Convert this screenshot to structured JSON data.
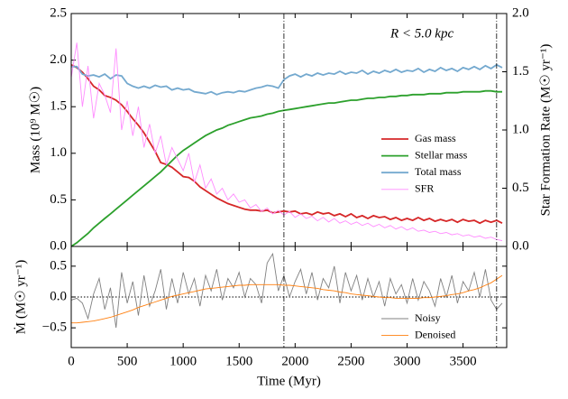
{
  "chart_data": [
    {
      "type": "line",
      "ylabel": "Mass (10⁹ M☉)",
      "y2label": "Star Formation Rate (M☉ yr⁻¹)",
      "annotation": "R < 5.0 kpc",
      "xlim": [
        0,
        3890
      ],
      "xticks": [
        0,
        500,
        1000,
        1500,
        2000,
        2500,
        3000,
        3500
      ],
      "ylim": [
        0,
        2.5
      ],
      "yticks": [
        {
          "value": 0,
          "label": "0.0"
        },
        0.5,
        {
          "value": 1,
          "label": "1.0"
        },
        1.5,
        {
          "value": 2,
          "label": "2.0"
        },
        2.5
      ],
      "y2lim": [
        0,
        2.0
      ],
      "y2ticks": [
        {
          "value": 0,
          "label": "0.0"
        },
        0.5,
        {
          "value": 1,
          "label": "1.0"
        },
        1.5,
        {
          "value": 2,
          "label": "2.0"
        }
      ],
      "vlines": [
        1900,
        3800
      ],
      "legend": "lower right",
      "x": [
        0,
        50,
        100,
        150,
        200,
        250,
        300,
        350,
        400,
        450,
        500,
        550,
        600,
        650,
        700,
        750,
        800,
        850,
        900,
        950,
        1000,
        1050,
        1100,
        1150,
        1200,
        1250,
        1300,
        1350,
        1400,
        1450,
        1500,
        1550,
        1600,
        1650,
        1700,
        1750,
        1800,
        1850,
        1900,
        1950,
        2000,
        2050,
        2100,
        2150,
        2200,
        2250,
        2300,
        2350,
        2400,
        2450,
        2500,
        2550,
        2600,
        2650,
        2700,
        2750,
        2800,
        2850,
        2900,
        2950,
        3000,
        3050,
        3100,
        3150,
        3200,
        3250,
        3300,
        3350,
        3400,
        3450,
        3500,
        3550,
        3600,
        3650,
        3700,
        3750,
        3800,
        3850
      ],
      "series": [
        {
          "name": "Gas mass",
          "color": "#d62728",
          "values": [
            1.95,
            1.92,
            1.87,
            1.8,
            1.72,
            1.68,
            1.62,
            1.6,
            1.57,
            1.52,
            1.45,
            1.37,
            1.3,
            1.22,
            1.12,
            1.02,
            0.9,
            0.88,
            0.85,
            0.8,
            0.75,
            0.74,
            0.7,
            0.64,
            0.6,
            0.56,
            0.52,
            0.49,
            0.46,
            0.44,
            0.42,
            0.4,
            0.39,
            0.39,
            0.38,
            0.39,
            0.36,
            0.37,
            0.38,
            0.37,
            0.38,
            0.35,
            0.36,
            0.34,
            0.37,
            0.35,
            0.36,
            0.33,
            0.35,
            0.32,
            0.35,
            0.31,
            0.33,
            0.3,
            0.33,
            0.31,
            0.32,
            0.29,
            0.31,
            0.28,
            0.3,
            0.28,
            0.31,
            0.28,
            0.3,
            0.27,
            0.29,
            0.27,
            0.29,
            0.26,
            0.29,
            0.27,
            0.28,
            0.25,
            0.28,
            0.26,
            0.28,
            0.25
          ]
        },
        {
          "name": "Stellar mass",
          "color": "#2ca02c",
          "values": [
            0.0,
            0.04,
            0.09,
            0.14,
            0.2,
            0.25,
            0.3,
            0.35,
            0.4,
            0.45,
            0.5,
            0.55,
            0.6,
            0.65,
            0.7,
            0.75,
            0.8,
            0.86,
            0.92,
            0.98,
            1.03,
            1.07,
            1.11,
            1.15,
            1.19,
            1.22,
            1.25,
            1.27,
            1.3,
            1.32,
            1.34,
            1.36,
            1.38,
            1.39,
            1.4,
            1.42,
            1.43,
            1.45,
            1.46,
            1.47,
            1.48,
            1.49,
            1.5,
            1.51,
            1.52,
            1.53,
            1.54,
            1.54,
            1.55,
            1.56,
            1.57,
            1.57,
            1.58,
            1.59,
            1.59,
            1.6,
            1.6,
            1.61,
            1.61,
            1.62,
            1.62,
            1.63,
            1.63,
            1.63,
            1.64,
            1.64,
            1.64,
            1.65,
            1.65,
            1.65,
            1.66,
            1.66,
            1.66,
            1.66,
            1.67,
            1.67,
            1.66,
            1.66
          ]
        },
        {
          "name": "Total mass",
          "color": "#74a9cf",
          "values": [
            1.93,
            1.93,
            1.85,
            1.83,
            1.84,
            1.82,
            1.85,
            1.8,
            1.84,
            1.83,
            1.75,
            1.72,
            1.7,
            1.72,
            1.7,
            1.73,
            1.71,
            1.72,
            1.68,
            1.7,
            1.68,
            1.69,
            1.66,
            1.65,
            1.64,
            1.66,
            1.63,
            1.65,
            1.66,
            1.65,
            1.67,
            1.66,
            1.68,
            1.7,
            1.71,
            1.73,
            1.72,
            1.7,
            1.79,
            1.83,
            1.85,
            1.82,
            1.85,
            1.83,
            1.86,
            1.84,
            1.86,
            1.85,
            1.88,
            1.85,
            1.87,
            1.86,
            1.89,
            1.85,
            1.88,
            1.86,
            1.89,
            1.87,
            1.9,
            1.87,
            1.89,
            1.88,
            1.91,
            1.87,
            1.9,
            1.88,
            1.92,
            1.89,
            1.91,
            1.88,
            1.92,
            1.9,
            1.93,
            1.9,
            1.94,
            1.91,
            1.95,
            1.92
          ]
        },
        {
          "name": "SFR",
          "color": "#ff8cff",
          "axis": "y2",
          "values": [
            1.45,
            1.75,
            1.2,
            1.55,
            1.1,
            1.4,
            1.3,
            1.15,
            1.7,
            1.0,
            1.25,
            0.95,
            1.2,
            0.85,
            1.05,
            0.8,
            0.95,
            0.7,
            0.85,
            0.75,
            0.65,
            0.8,
            0.55,
            0.7,
            0.5,
            0.58,
            0.45,
            0.5,
            0.4,
            0.45,
            0.38,
            0.4,
            0.33,
            0.36,
            0.3,
            0.33,
            0.28,
            0.31,
            0.27,
            0.3,
            0.25,
            0.28,
            0.24,
            0.26,
            0.22,
            0.25,
            0.21,
            0.24,
            0.2,
            0.22,
            0.19,
            0.21,
            0.18,
            0.2,
            0.17,
            0.19,
            0.16,
            0.18,
            0.15,
            0.17,
            0.14,
            0.16,
            0.13,
            0.14,
            0.12,
            0.13,
            0.11,
            0.12,
            0.1,
            0.11,
            0.09,
            0.1,
            0.08,
            0.09,
            0.07,
            0.08,
            0.06,
            0.05
          ]
        }
      ]
    },
    {
      "type": "line",
      "xlabel": "Time (Myr)",
      "ylabel": "Ṁ (M☉ yr⁻¹)",
      "xlim": [
        0,
        3890
      ],
      "xticks": [
        0,
        500,
        1000,
        1500,
        2000,
        2500,
        3000,
        3500
      ],
      "ylim": [
        -0.82,
        0.82
      ],
      "yticks": [
        {
          "value": -0.5,
          "label": "−0.5"
        },
        {
          "value": 0,
          "label": "0.0"
        },
        0.5
      ],
      "zero_line": true,
      "legend": "lower right",
      "x": [
        0,
        50,
        100,
        150,
        200,
        250,
        300,
        350,
        400,
        450,
        500,
        550,
        600,
        650,
        700,
        750,
        800,
        850,
        900,
        950,
        1000,
        1050,
        1100,
        1150,
        1200,
        1250,
        1300,
        1350,
        1400,
        1450,
        1500,
        1550,
        1600,
        1650,
        1700,
        1750,
        1800,
        1850,
        1900,
        1950,
        2000,
        2050,
        2100,
        2150,
        2200,
        2250,
        2300,
        2350,
        2400,
        2450,
        2500,
        2550,
        2600,
        2650,
        2700,
        2750,
        2800,
        2850,
        2900,
        2950,
        3000,
        3050,
        3100,
        3150,
        3200,
        3250,
        3300,
        3350,
        3400,
        3450,
        3500,
        3550,
        3600,
        3650,
        3700,
        3750,
        3800,
        3850
      ],
      "series": [
        {
          "name": "Noisy",
          "color": "#808080",
          "values": [
            -0.05,
            -0.02,
            -0.1,
            -0.35,
            0.05,
            0.3,
            -0.2,
            0.15,
            -0.5,
            0.4,
            -0.1,
            0.25,
            -0.3,
            0.35,
            -0.15,
            0.1,
            0.45,
            -0.2,
            0.3,
            -0.1,
            0.4,
            0.05,
            0.3,
            -0.15,
            0.35,
            0.1,
            0.45,
            -0.05,
            0.3,
            0.15,
            0.4,
            0.0,
            0.3,
            0.2,
            -0.1,
            0.55,
            0.7,
            0.1,
            0.35,
            0.0,
            0.25,
            0.45,
            0.05,
            0.4,
            -0.05,
            0.3,
            0.15,
            0.5,
            -0.1,
            0.4,
            0.1,
            0.35,
            -0.05,
            0.3,
            0.0,
            0.25,
            -0.15,
            0.3,
            0.05,
            0.2,
            -0.1,
            0.3,
            -0.05,
            0.25,
            0.1,
            -0.15,
            0.3,
            0.0,
            0.35,
            -0.1,
            0.25,
            0.1,
            0.4,
            0.0,
            0.45,
            -0.05,
            -0.2,
            -0.1
          ]
        },
        {
          "name": "Denoised",
          "color": "#ff7f0e",
          "values": [
            -0.42,
            -0.42,
            -0.41,
            -0.4,
            -0.39,
            -0.37,
            -0.35,
            -0.33,
            -0.3,
            -0.27,
            -0.24,
            -0.21,
            -0.17,
            -0.14,
            -0.11,
            -0.08,
            -0.05,
            -0.02,
            0.01,
            0.03,
            0.05,
            0.07,
            0.09,
            0.11,
            0.13,
            0.14,
            0.15,
            0.16,
            0.17,
            0.18,
            0.19,
            0.19,
            0.2,
            0.2,
            0.2,
            0.2,
            0.2,
            0.2,
            0.19,
            0.19,
            0.18,
            0.17,
            0.16,
            0.15,
            0.14,
            0.12,
            0.11,
            0.1,
            0.08,
            0.07,
            0.05,
            0.04,
            0.03,
            0.02,
            0.01,
            0.0,
            -0.01,
            -0.01,
            -0.02,
            -0.02,
            -0.02,
            -0.02,
            -0.02,
            -0.01,
            -0.01,
            0.0,
            0.01,
            0.02,
            0.04,
            0.05,
            0.07,
            0.1,
            0.12,
            0.15,
            0.19,
            0.23,
            0.29,
            0.35
          ]
        }
      ]
    }
  ]
}
